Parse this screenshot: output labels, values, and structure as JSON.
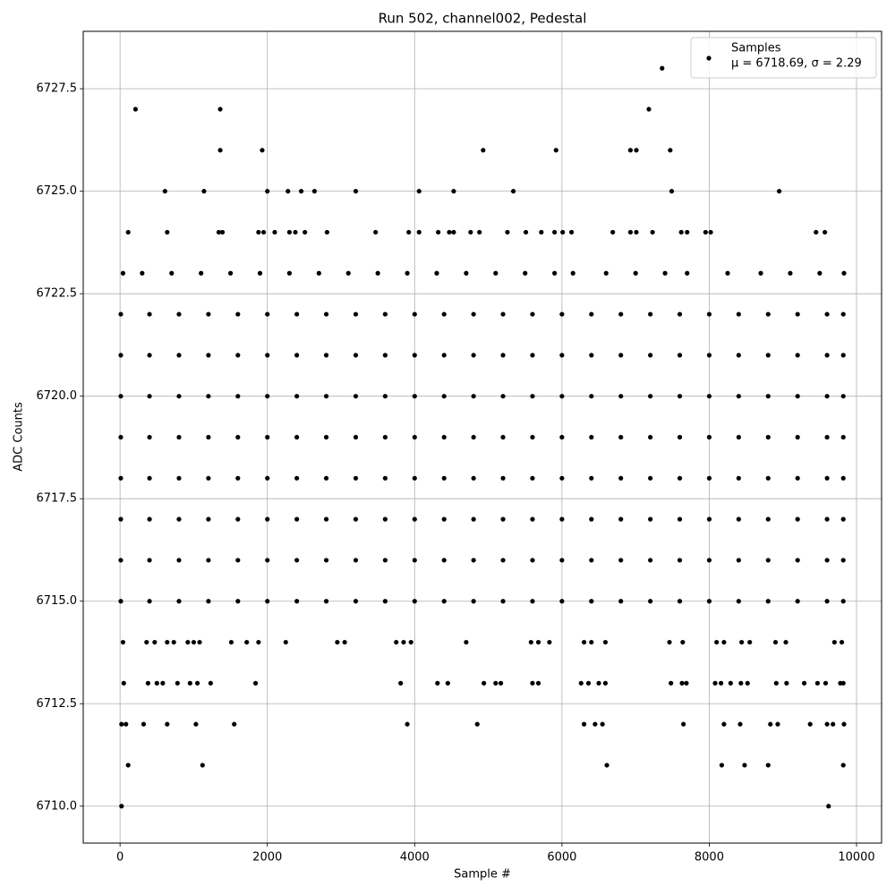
{
  "chart_data": {
    "type": "scatter",
    "title": "Run 502, channel002, Pedestal",
    "x_label": "Sample #",
    "y_label": "ADC Counts",
    "stats_label": "μ = 6718.69, σ = 2.29",
    "legend": "upper right",
    "grid": true,
    "xlim": [
      -500,
      10340
    ],
    "ylim": [
      6709.1,
      6728.9
    ],
    "xticks": [
      0,
      2000,
      4000,
      6000,
      8000,
      10000
    ],
    "yticks": [
      {
        "value": 6710,
        "label": "6710.0"
      },
      6712.5,
      {
        "value": 6715,
        "label": "6715.0"
      },
      6717.5,
      {
        "value": 6720,
        "label": "6720.0"
      },
      6722.5,
      {
        "value": 6725,
        "label": "6725.0"
      },
      6727.5
    ],
    "series": [
      {
        "name": "Samples",
        "color": "#000000",
        "x": [
          10,
          400,
          800,
          1200,
          1600,
          2000,
          2400,
          2800,
          3200,
          3600,
          4000,
          4400,
          4800,
          5200,
          5600,
          6000,
          6400,
          6800,
          7200,
          7600,
          8000,
          8400,
          8800,
          9200,
          9600,
          9820,
          10,
          400,
          800,
          1200,
          1600,
          2000,
          2400,
          2800,
          3200,
          3600,
          4000,
          4400,
          4800,
          5200,
          5600,
          6000,
          6400,
          6800,
          7200,
          7600,
          8000,
          8400,
          8800,
          9200,
          9600,
          9820,
          10,
          400,
          800,
          1200,
          1600,
          2000,
          2400,
          2800,
          3200,
          3600,
          4000,
          4400,
          4800,
          5200,
          5600,
          6000,
          6400,
          6800,
          7200,
          7600,
          8000,
          8400,
          8800,
          9200,
          9600,
          9820,
          10,
          400,
          800,
          1200,
          1600,
          2000,
          2400,
          2800,
          3200,
          3600,
          4000,
          4400,
          4800,
          5200,
          5600,
          6000,
          6400,
          6800,
          7200,
          7600,
          8000,
          8400,
          8800,
          9200,
          9600,
          9820,
          10,
          400,
          800,
          1200,
          1600,
          2000,
          2400,
          2800,
          3200,
          3600,
          4000,
          4400,
          4800,
          5200,
          5600,
          6000,
          6400,
          6800,
          7200,
          7600,
          8000,
          8400,
          8800,
          9200,
          9600,
          9820,
          10,
          400,
          800,
          1200,
          1600,
          2000,
          2400,
          2800,
          3200,
          3600,
          4000,
          4400,
          4800,
          5200,
          5600,
          6000,
          6400,
          6800,
          7200,
          7600,
          8000,
          8400,
          8800,
          9200,
          9600,
          9820,
          10,
          400,
          800,
          1200,
          1600,
          2000,
          2400,
          2800,
          3200,
          3600,
          4000,
          4400,
          4800,
          5200,
          5600,
          6000,
          6400,
          6800,
          7200,
          7600,
          8000,
          8400,
          8800,
          9200,
          9600,
          9820,
          10,
          400,
          800,
          1200,
          1600,
          2000,
          2400,
          2800,
          3200,
          3600,
          4000,
          4400,
          4800,
          5200,
          5600,
          6000,
          6400,
          6800,
          7200,
          7600,
          8000,
          8400,
          8800,
          9200,
          9600,
          9820,
          40,
          300,
          700,
          1100,
          1500,
          1900,
          2300,
          2700,
          3100,
          3500,
          3900,
          4300,
          4700,
          5100,
          5500,
          5900,
          6150,
          6600,
          7000,
          7400,
          7700,
          8250,
          8700,
          9100,
          9500,
          9830,
          20,
          9620,
          110,
          1120,
          6610,
          8170,
          8480,
          8800,
          9820,
          20,
          80,
          320,
          640,
          1030,
          1550,
          3900,
          4850,
          6300,
          6450,
          6550,
          7650,
          8200,
          8420,
          8830,
          8930,
          9370,
          9600,
          9680,
          9830,
          50,
          380,
          500,
          580,
          780,
          950,
          1050,
          1230,
          1840,
          3810,
          4310,
          4450,
          4940,
          5100,
          5170,
          5600,
          5680,
          6260,
          6360,
          6500,
          6590,
          7480,
          7630,
          7690,
          8080,
          8160,
          8290,
          8430,
          8520,
          8910,
          9050,
          9290,
          9470,
          9580,
          9780,
          9820,
          40,
          360,
          470,
          640,
          730,
          920,
          1000,
          1080,
          1510,
          1720,
          1880,
          2250,
          2950,
          3050,
          3750,
          3850,
          3950,
          4700,
          5580,
          5680,
          5830,
          6300,
          6400,
          6590,
          7460,
          7640,
          8100,
          8200,
          8440,
          8550,
          8900,
          9040,
          9700,
          9800,
          110,
          640,
          1340,
          1390,
          1880,
          1950,
          2100,
          2300,
          2380,
          2510,
          2810,
          3470,
          3920,
          4060,
          4320,
          4470,
          4530,
          4760,
          4880,
          5260,
          5510,
          5720,
          5900,
          6010,
          6130,
          6690,
          6930,
          7010,
          7230,
          7620,
          7700,
          7950,
          8020,
          9450,
          9570,
          610,
          1140,
          2000,
          2280,
          2460,
          2640,
          3200,
          4060,
          4530,
          5340,
          7490,
          8950,
          1360,
          1930,
          4930,
          5920,
          6930,
          7010,
          7470,
          210,
          1360,
          7180,
          7360
        ],
        "values": [
          6715,
          6715,
          6715,
          6715,
          6715,
          6715,
          6715,
          6715,
          6715,
          6715,
          6715,
          6715,
          6715,
          6715,
          6715,
          6715,
          6715,
          6715,
          6715,
          6715,
          6715,
          6715,
          6715,
          6715,
          6715,
          6715,
          6716,
          6716,
          6716,
          6716,
          6716,
          6716,
          6716,
          6716,
          6716,
          6716,
          6716,
          6716,
          6716,
          6716,
          6716,
          6716,
          6716,
          6716,
          6716,
          6716,
          6716,
          6716,
          6716,
          6716,
          6716,
          6716,
          6717,
          6717,
          6717,
          6717,
          6717,
          6717,
          6717,
          6717,
          6717,
          6717,
          6717,
          6717,
          6717,
          6717,
          6717,
          6717,
          6717,
          6717,
          6717,
          6717,
          6717,
          6717,
          6717,
          6717,
          6717,
          6717,
          6718,
          6718,
          6718,
          6718,
          6718,
          6718,
          6718,
          6718,
          6718,
          6718,
          6718,
          6718,
          6718,
          6718,
          6718,
          6718,
          6718,
          6718,
          6718,
          6718,
          6718,
          6718,
          6718,
          6718,
          6718,
          6718,
          6719,
          6719,
          6719,
          6719,
          6719,
          6719,
          6719,
          6719,
          6719,
          6719,
          6719,
          6719,
          6719,
          6719,
          6719,
          6719,
          6719,
          6719,
          6719,
          6719,
          6719,
          6719,
          6719,
          6719,
          6719,
          6719,
          6720,
          6720,
          6720,
          6720,
          6720,
          6720,
          6720,
          6720,
          6720,
          6720,
          6720,
          6720,
          6720,
          6720,
          6720,
          6720,
          6720,
          6720,
          6720,
          6720,
          6720,
          6720,
          6720,
          6720,
          6720,
          6720,
          6721,
          6721,
          6721,
          6721,
          6721,
          6721,
          6721,
          6721,
          6721,
          6721,
          6721,
          6721,
          6721,
          6721,
          6721,
          6721,
          6721,
          6721,
          6721,
          6721,
          6721,
          6721,
          6721,
          6721,
          6721,
          6721,
          6722,
          6722,
          6722,
          6722,
          6722,
          6722,
          6722,
          6722,
          6722,
          6722,
          6722,
          6722,
          6722,
          6722,
          6722,
          6722,
          6722,
          6722,
          6722,
          6722,
          6722,
          6722,
          6722,
          6722,
          6722,
          6722,
          6723,
          6723,
          6723,
          6723,
          6723,
          6723,
          6723,
          6723,
          6723,
          6723,
          6723,
          6723,
          6723,
          6723,
          6723,
          6723,
          6723,
          6723,
          6723,
          6723,
          6723,
          6723,
          6723,
          6723,
          6723,
          6723,
          6710,
          6710,
          6711,
          6711,
          6711,
          6711,
          6711,
          6711,
          6711,
          6712,
          6712,
          6712,
          6712,
          6712,
          6712,
          6712,
          6712,
          6712,
          6712,
          6712,
          6712,
          6712,
          6712,
          6712,
          6712,
          6712,
          6712,
          6712,
          6712,
          6713,
          6713,
          6713,
          6713,
          6713,
          6713,
          6713,
          6713,
          6713,
          6713,
          6713,
          6713,
          6713,
          6713,
          6713,
          6713,
          6713,
          6713,
          6713,
          6713,
          6713,
          6713,
          6713,
          6713,
          6713,
          6713,
          6713,
          6713,
          6713,
          6713,
          6713,
          6713,
          6713,
          6713,
          6713,
          6713,
          6714,
          6714,
          6714,
          6714,
          6714,
          6714,
          6714,
          6714,
          6714,
          6714,
          6714,
          6714,
          6714,
          6714,
          6714,
          6714,
          6714,
          6714,
          6714,
          6714,
          6714,
          6714,
          6714,
          6714,
          6714,
          6714,
          6714,
          6714,
          6714,
          6714,
          6714,
          6714,
          6714,
          6714,
          6724,
          6724,
          6724,
          6724,
          6724,
          6724,
          6724,
          6724,
          6724,
          6724,
          6724,
          6724,
          6724,
          6724,
          6724,
          6724,
          6724,
          6724,
          6724,
          6724,
          6724,
          6724,
          6724,
          6724,
          6724,
          6724,
          6724,
          6724,
          6724,
          6724,
          6724,
          6724,
          6724,
          6724,
          6724,
          6725,
          6725,
          6725,
          6725,
          6725,
          6725,
          6725,
          6725,
          6725,
          6725,
          6725,
          6725,
          6726,
          6726,
          6726,
          6726,
          6726,
          6726,
          6726,
          6727,
          6727,
          6727,
          6728
        ]
      }
    ]
  }
}
